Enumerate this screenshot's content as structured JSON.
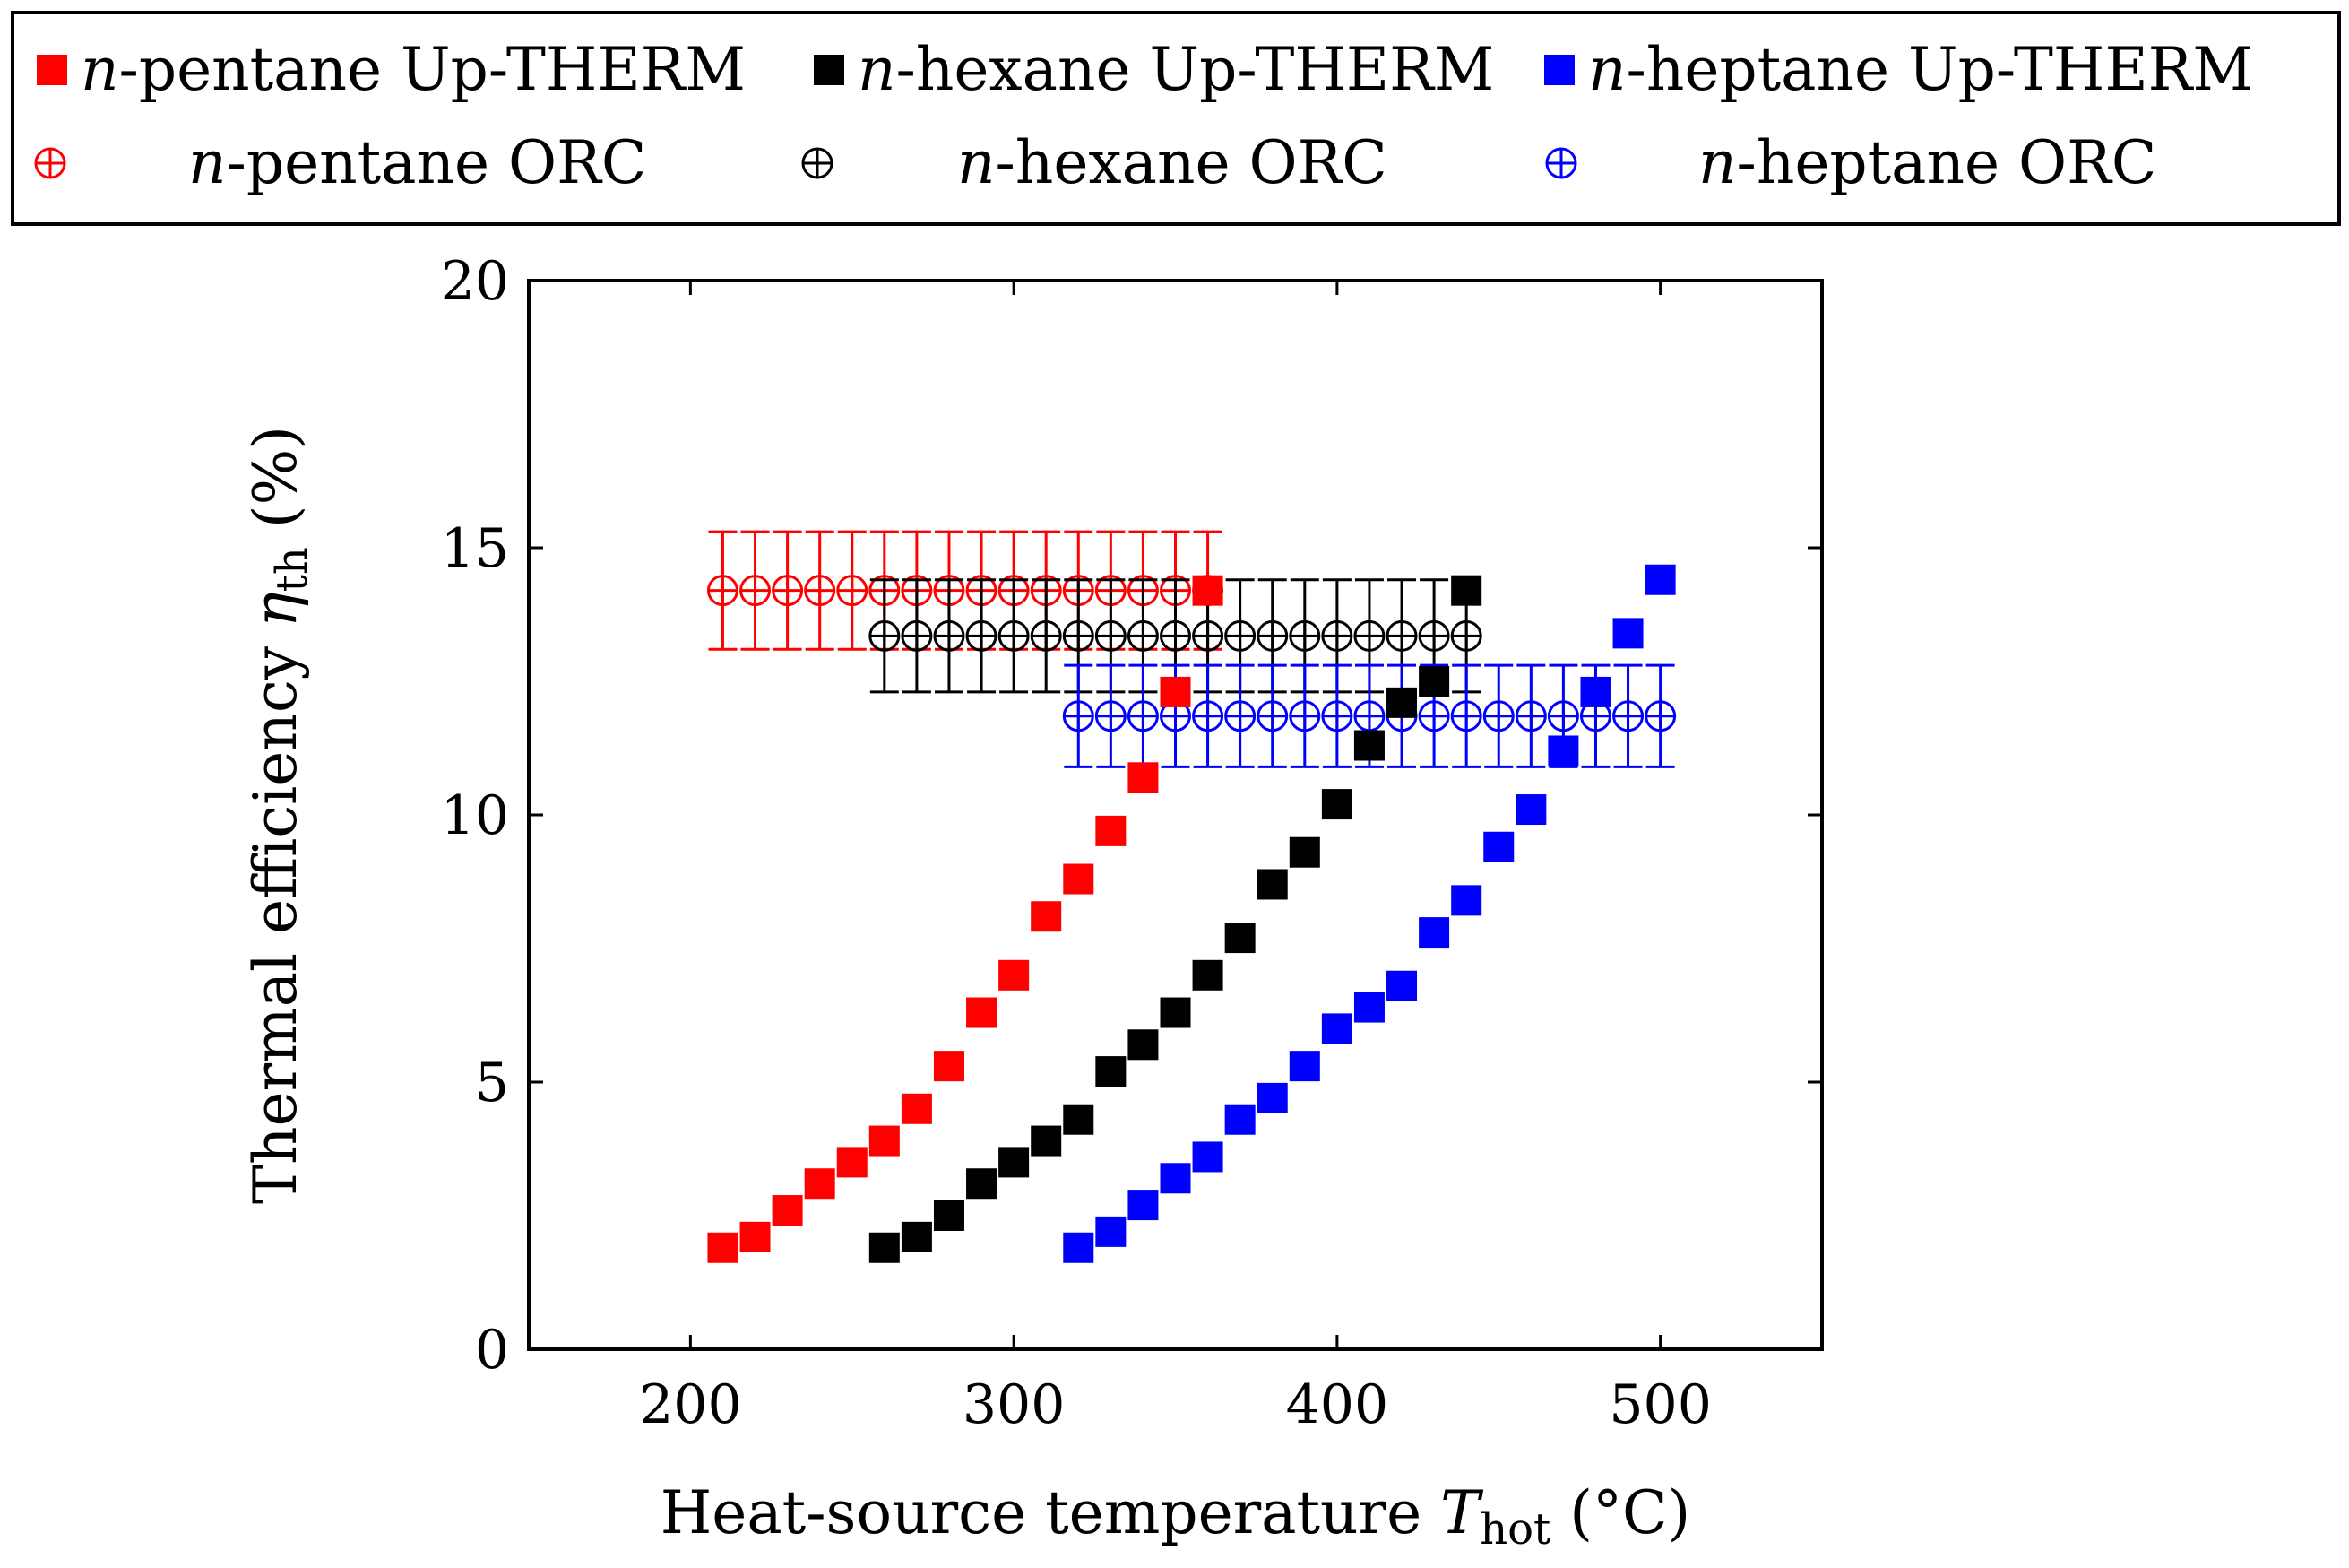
{
  "chart_data": {
    "type": "scatter",
    "title": "",
    "xlabel": {
      "main": "Heat-source temperature ",
      "var": "T",
      "sub": "hot",
      "unit": " (°C)"
    },
    "ylabel": {
      "main": "Thermal efficiency ",
      "var": "η",
      "sub": "th",
      "unit": " (%)"
    },
    "xlim": [
      150,
      550
    ],
    "ylim": [
      0,
      20
    ],
    "xticks": [
      200,
      300,
      400,
      500
    ],
    "yticks": [
      0,
      5,
      10,
      15,
      20
    ],
    "grid": false,
    "legend_position": "top",
    "series": [
      {
        "name": "n-pentane Up-THERM",
        "prefix": "n",
        "label": "-pentane Up-THERM",
        "marker": "square",
        "color": "#ff0000",
        "x": [
          210,
          220,
          230,
          240,
          250,
          260,
          270,
          280,
          290,
          300,
          310,
          320,
          330,
          340,
          350,
          360
        ],
        "y": [
          1.9,
          2.1,
          2.6,
          3.1,
          3.5,
          3.9,
          4.5,
          5.3,
          6.3,
          7.0,
          8.1,
          8.8,
          9.7,
          10.7,
          12.3,
          14.2
        ]
      },
      {
        "name": "n-hexane Up-THERM",
        "prefix": "n",
        "label": "-hexane Up-THERM",
        "marker": "square",
        "color": "#000000",
        "x": [
          260,
          270,
          280,
          290,
          300,
          310,
          320,
          330,
          340,
          350,
          360,
          370,
          380,
          390,
          400,
          410,
          420,
          430,
          440
        ],
        "y": [
          1.9,
          2.1,
          2.5,
          3.1,
          3.5,
          3.9,
          4.3,
          5.2,
          5.7,
          6.3,
          7.0,
          7.7,
          8.7,
          9.3,
          10.2,
          11.3,
          12.1,
          12.5,
          14.2
        ]
      },
      {
        "name": "n-heptane Up-THERM",
        "prefix": "n",
        "label": "-heptane Up-THERM",
        "marker": "square",
        "color": "#0000ff",
        "x": [
          320,
          330,
          340,
          350,
          360,
          370,
          380,
          390,
          400,
          410,
          420,
          430,
          440,
          450,
          460,
          470,
          480,
          490,
          500
        ],
        "y": [
          1.9,
          2.2,
          2.7,
          3.2,
          3.6,
          4.3,
          4.7,
          5.3,
          6.0,
          6.4,
          6.8,
          7.8,
          8.4,
          9.4,
          10.1,
          11.2,
          12.3,
          13.4,
          14.4
        ]
      },
      {
        "name": "n-pentane ORC",
        "prefix": "n",
        "label": "-pentane ORC",
        "marker": "circle-plus",
        "color": "#ff0000",
        "x": [
          210,
          220,
          230,
          240,
          250,
          260,
          270,
          280,
          290,
          300,
          310,
          320,
          330,
          340,
          350,
          360
        ],
        "y": [
          14.2,
          14.2,
          14.2,
          14.2,
          14.2,
          14.2,
          14.2,
          14.2,
          14.2,
          14.2,
          14.2,
          14.2,
          14.2,
          14.2,
          14.2,
          14.2
        ],
        "error": 1.1
      },
      {
        "name": "n-hexane ORC",
        "prefix": "n",
        "label": "-hexane ORC",
        "marker": "circle-plus",
        "color": "#000000",
        "x": [
          260,
          270,
          280,
          290,
          300,
          310,
          320,
          330,
          340,
          350,
          360,
          370,
          380,
          390,
          400,
          410,
          420,
          430,
          440
        ],
        "y": [
          13.35,
          13.35,
          13.35,
          13.35,
          13.35,
          13.35,
          13.35,
          13.35,
          13.35,
          13.35,
          13.35,
          13.35,
          13.35,
          13.35,
          13.35,
          13.35,
          13.35,
          13.35,
          13.35
        ],
        "error": 1.05
      },
      {
        "name": "n-heptane ORC",
        "prefix": "n",
        "label": "-heptane ORC",
        "marker": "circle-plus",
        "color": "#0000ff",
        "x": [
          320,
          330,
          340,
          350,
          360,
          370,
          380,
          390,
          400,
          410,
          420,
          430,
          440,
          450,
          460,
          470,
          480,
          490,
          500
        ],
        "y": [
          11.85,
          11.85,
          11.85,
          11.85,
          11.85,
          11.85,
          11.85,
          11.85,
          11.85,
          11.85,
          11.85,
          11.85,
          11.85,
          11.85,
          11.85,
          11.85,
          11.85,
          11.85,
          11.85
        ],
        "error": 0.95
      }
    ]
  }
}
